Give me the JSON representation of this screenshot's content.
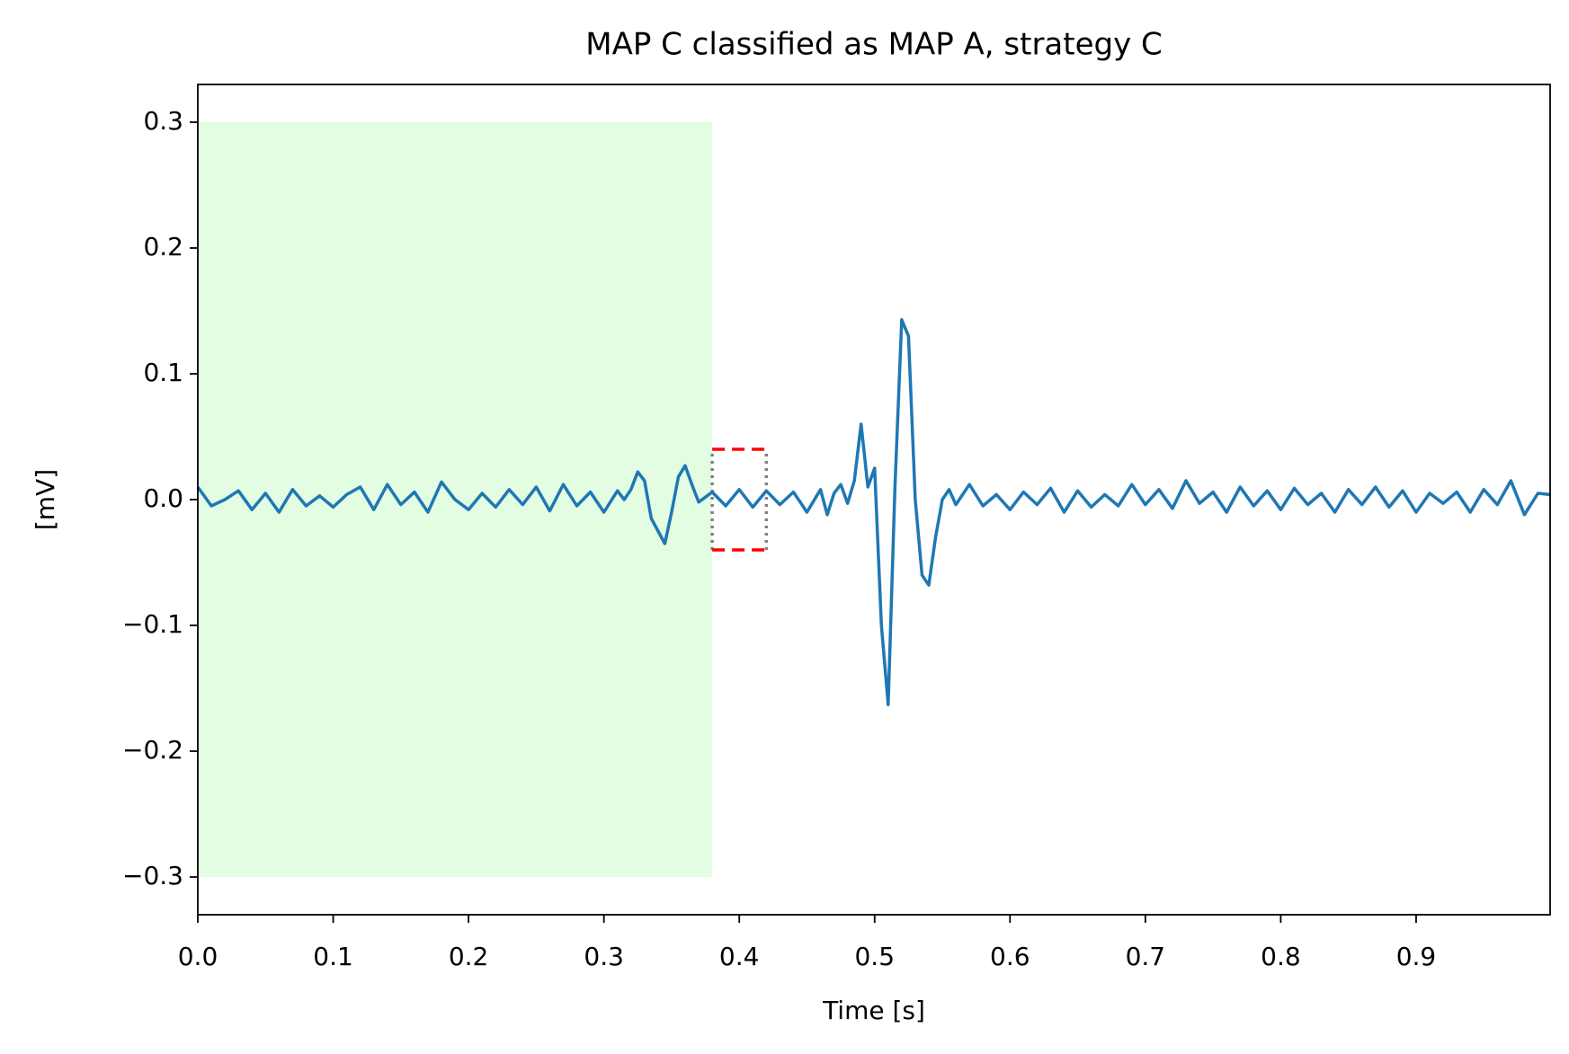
{
  "chart_data": {
    "type": "line",
    "title": "MAP C classified as MAP A, strategy C",
    "x_label": "Time [s]",
    "y_label": "[mV]",
    "x": [
      0,
      0.01,
      0.02,
      0.03,
      0.04,
      0.05,
      0.06,
      0.07,
      0.08,
      0.09,
      0.1,
      0.11,
      0.12,
      0.13,
      0.14,
      0.15,
      0.16,
      0.17,
      0.18,
      0.19,
      0.2,
      0.21,
      0.22,
      0.23,
      0.24,
      0.25,
      0.26,
      0.27,
      0.28,
      0.29,
      0.3,
      0.31,
      0.315,
      0.32,
      0.325,
      0.33,
      0.335,
      0.34,
      0.345,
      0.35,
      0.355,
      0.36,
      0.365,
      0.37,
      0.38,
      0.39,
      0.4,
      0.41,
      0.42,
      0.43,
      0.44,
      0.45,
      0.46,
      0.465,
      0.47,
      0.475,
      0.48,
      0.485,
      0.49,
      0.495,
      0.5,
      0.505,
      0.51,
      0.515,
      0.52,
      0.525,
      0.53,
      0.535,
      0.54,
      0.545,
      0.55,
      0.555,
      0.56,
      0.57,
      0.58,
      0.59,
      0.6,
      0.61,
      0.62,
      0.63,
      0.64,
      0.65,
      0.66,
      0.67,
      0.68,
      0.69,
      0.7,
      0.71,
      0.72,
      0.73,
      0.74,
      0.75,
      0.76,
      0.77,
      0.78,
      0.79,
      0.8,
      0.81,
      0.82,
      0.83,
      0.84,
      0.85,
      0.86,
      0.87,
      0.88,
      0.89,
      0.9,
      0.91,
      0.92,
      0.93,
      0.94,
      0.95,
      0.96,
      0.97,
      0.98,
      0.99,
      0.999
    ],
    "series": [
      {
        "color": "#1f77b4",
        "values": [
          0.01,
          -0.005,
          0.0,
          0.007,
          -0.008,
          0.005,
          -0.01,
          0.008,
          -0.005,
          0.003,
          -0.006,
          0.004,
          0.01,
          -0.008,
          0.012,
          -0.004,
          0.006,
          -0.01,
          0.014,
          0.0,
          -0.008,
          0.005,
          -0.006,
          0.008,
          -0.004,
          0.01,
          -0.009,
          0.012,
          -0.005,
          0.006,
          -0.01,
          0.007,
          0.0,
          0.008,
          0.022,
          0.015,
          -0.015,
          -0.025,
          -0.035,
          -0.01,
          0.018,
          0.027,
          0.012,
          -0.002,
          0.006,
          -0.005,
          0.008,
          -0.006,
          0.007,
          -0.004,
          0.006,
          -0.01,
          0.008,
          -0.012,
          0.005,
          0.012,
          -0.003,
          0.015,
          0.06,
          0.01,
          0.025,
          -0.1,
          -0.163,
          0.01,
          0.143,
          0.13,
          0.0,
          -0.06,
          -0.068,
          -0.03,
          0.0,
          0.008,
          -0.004,
          0.012,
          -0.005,
          0.004,
          -0.008,
          0.006,
          -0.004,
          0.009,
          -0.01,
          0.007,
          -0.006,
          0.004,
          -0.005,
          0.012,
          -0.004,
          0.008,
          -0.007,
          0.015,
          -0.003,
          0.006,
          -0.01,
          0.01,
          -0.005,
          0.007,
          -0.008,
          0.009,
          -0.004,
          0.005,
          -0.01,
          0.008,
          -0.004,
          0.01,
          -0.006,
          0.007,
          -0.01,
          0.005,
          -0.003,
          0.006,
          -0.01,
          0.008,
          -0.004,
          0.015,
          -0.012,
          0.005,
          0.004
        ]
      }
    ],
    "shaded_region": {
      "x": [
        0,
        0.38
      ],
      "y": [
        -0.3,
        0.3
      ],
      "color": "#e3fde3"
    },
    "window": {
      "x": [
        0.38,
        0.42
      ],
      "y": [
        -0.04,
        0.04
      ],
      "color": "#ff0000",
      "side_color": "#808080"
    },
    "xlim": [
      0,
      0.999
    ],
    "ylim": [
      -0.33,
      0.33
    ],
    "xticks": [
      {
        "value": 0,
        "label": "0.0"
      },
      0.1,
      0.2,
      0.3,
      0.4,
      0.5,
      0.6,
      0.7,
      0.8,
      0.9
    ],
    "yticks": [
      {
        "value": -0.3,
        "label": "−0.3"
      },
      {
        "value": -0.2,
        "label": "−0.2"
      },
      {
        "value": -0.1,
        "label": "−0.1"
      },
      {
        "value": 0,
        "label": "0.0"
      },
      0.1,
      0.2,
      0.3
    ]
  }
}
